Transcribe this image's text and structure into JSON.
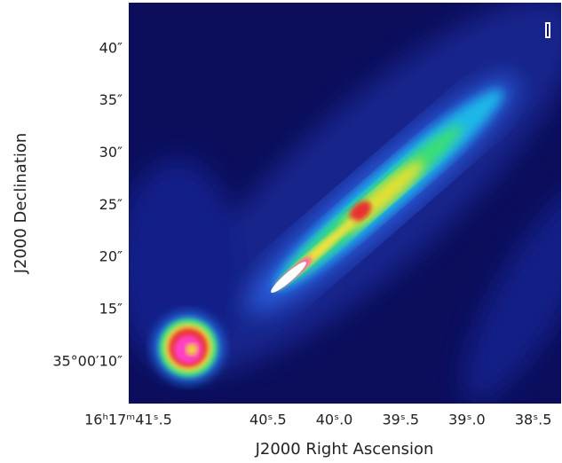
{
  "chart_data": {
    "type": "image",
    "xlabel": "J2000 Right Ascension",
    "ylabel": "J2000 Declination",
    "xlim": [
      41.55,
      38.29
    ],
    "ylim": [
      6.0,
      44.4
    ],
    "xticks": [
      {
        "value": 41.5,
        "label": "16ʰ17ᵐ41ˢ.5"
      },
      {
        "value": 40.5,
        "label": "40ˢ.5"
      },
      {
        "value": 40.0,
        "label": "40ˢ.0"
      },
      {
        "value": 39.5,
        "label": "39ˢ.5"
      },
      {
        "value": 39.0,
        "label": "39ˢ.0"
      },
      {
        "value": 38.5,
        "label": "38ˢ.5"
      }
    ],
    "yticks": [
      {
        "value": 10,
        "label": "35°00′10″"
      },
      {
        "value": 15,
        "label": "15″"
      },
      {
        "value": 20,
        "label": "20″"
      },
      {
        "value": 25,
        "label": "25″"
      },
      {
        "value": 30,
        "label": "30″"
      },
      {
        "value": 35,
        "label": "35″"
      },
      {
        "value": 40,
        "label": "40″"
      }
    ]
  }
}
